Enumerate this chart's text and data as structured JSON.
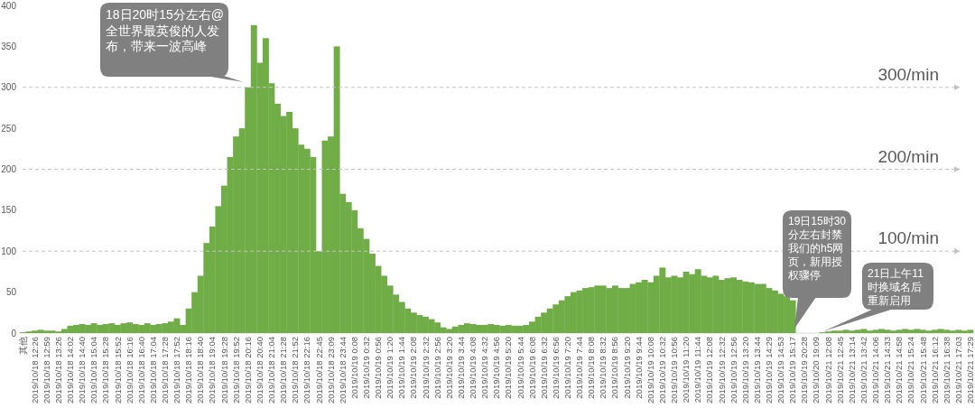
{
  "chart_data": {
    "type": "bar",
    "categories": [
      "其他",
      null,
      "2019/10/18 12:26",
      null,
      "2019/10/18 12:59",
      null,
      "2019/10/18 13:26",
      null,
      "2019/10/18 14:02",
      null,
      "2019/10/18 14:40",
      null,
      "2019/10/18 15:04",
      null,
      "2019/10/18 15:28",
      null,
      "2019/10/18 15:52",
      null,
      "2019/10/18 16:16",
      null,
      "2019/10/18 16:40",
      null,
      "2019/10/18 17:04",
      null,
      "2019/10/18 17:28",
      null,
      "2019/10/18 17:52",
      null,
      "2019/10/18 18:16",
      null,
      "2019/10/18 18:40",
      null,
      "2019/10/18 19:04",
      null,
      "2019/10/18 19:28",
      null,
      "2019/10/18 19:52",
      null,
      "2019/10/18 20:16",
      null,
      "2019/10/18 20:40",
      null,
      "2019/10/18 21:04",
      null,
      "2019/10/18 21:28",
      null,
      "2019/10/18 21:52",
      null,
      "2019/10/18 22:16",
      null,
      "2019/10/18 22:45",
      null,
      "2019/10/18 23:09",
      null,
      "2019/10/18 23:44",
      null,
      "2019/10/19 0:08",
      null,
      "2019/10/19 0:32",
      null,
      "2019/10/19 0:56",
      null,
      "2019/10/19 1:20",
      null,
      "2019/10/19 1:44",
      null,
      "2019/10/19 2:08",
      null,
      "2019/10/19 2:32",
      null,
      "2019/10/19 2:56",
      null,
      "2019/10/19 3:20",
      null,
      "2019/10/19 3:44",
      null,
      "2019/10/19 4:08",
      null,
      "2019/10/19 4:32",
      null,
      "2019/10/19 4:56",
      null,
      "2019/10/19 5:20",
      null,
      "2019/10/19 5:44",
      null,
      "2019/10/19 6:08",
      null,
      "2019/10/19 6:32",
      null,
      "2019/10/19 6:56",
      null,
      "2019/10/19 7:20",
      null,
      "2019/10/19 7:44",
      null,
      "2019/10/19 8:08",
      null,
      "2019/10/19 8:32",
      null,
      "2019/10/19 8:56",
      null,
      "2019/10/19 9:20",
      null,
      "2019/10/19 9:44",
      null,
      "2019/10/19 10:08",
      null,
      "2019/10/19 10:32",
      null,
      "2019/10/19 10:56",
      null,
      "2019/10/19 11:20",
      null,
      "2019/10/19 11:44",
      null,
      "2019/10/19 12:08",
      null,
      "2019/10/19 12:32",
      null,
      "2019/10/19 12:56",
      null,
      "2019/10/19 13:20",
      null,
      "2019/10/19 13:44",
      null,
      "2019/10/19 14:29",
      null,
      "2019/10/19 14:53",
      null,
      "2019/10/19 15:17",
      null,
      "2019/10/19 20:28",
      null,
      "2019/10/20 19:09",
      null,
      "2019/10/21 12:08",
      null,
      "2019/10/21 12:45",
      null,
      "2019/10/21 13:14",
      null,
      "2019/10/21 13:42",
      null,
      "2019/10/21 14:06",
      null,
      "2019/10/21 14:33",
      null,
      "2019/10/21 14:58",
      null,
      "2019/10/21 15:24",
      null,
      "2019/10/21 15:48",
      null,
      "2019/10/21 16:12",
      null,
      "2019/10/21 16:38",
      null,
      "2019/10/21 17:03",
      null,
      "2019/10/21 17:29"
    ],
    "values": [
      1,
      2,
      3,
      4,
      3,
      3,
      2,
      5,
      9,
      10,
      11,
      10,
      12,
      10,
      11,
      12,
      10,
      12,
      13,
      11,
      10,
      12,
      10,
      11,
      12,
      14,
      18,
      10,
      30,
      50,
      70,
      110,
      130,
      155,
      180,
      215,
      240,
      250,
      300,
      376,
      330,
      360,
      305,
      280,
      265,
      270,
      250,
      230,
      225,
      215,
      100,
      235,
      240,
      350,
      170,
      160,
      150,
      128,
      115,
      97,
      82,
      70,
      58,
      47,
      38,
      30,
      25,
      22,
      20,
      17,
      13,
      7,
      5,
      8,
      10,
      12,
      11,
      10,
      10,
      11,
      10,
      9,
      10,
      9,
      9,
      10,
      14,
      20,
      25,
      30,
      35,
      40,
      45,
      50,
      52,
      55,
      56,
      58,
      58,
      55,
      58,
      55,
      55,
      60,
      62,
      65,
      62,
      70,
      80,
      68,
      70,
      68,
      75,
      72,
      78,
      70,
      68,
      70,
      65,
      67,
      68,
      65,
      63,
      62,
      60,
      60,
      55,
      52,
      48,
      45,
      40,
      0,
      0,
      0,
      0,
      1,
      2,
      3,
      3,
      4,
      3,
      4,
      5,
      3,
      4,
      5,
      4,
      3,
      4,
      5,
      4,
      5,
      4,
      3,
      4,
      5,
      4,
      3,
      4,
      3,
      4
    ],
    "color": "#70ad47",
    "ylim": [
      0,
      400
    ],
    "yticks": [
      0,
      50,
      100,
      150,
      200,
      250,
      300,
      350,
      400
    ],
    "ref_lines": [
      {
        "axis": "y",
        "value": 300,
        "label": "300/min",
        "color": "#c4c4c4",
        "line_style": "dashed"
      },
      {
        "axis": "y",
        "value": 200,
        "label": "200/min",
        "color": "#c4c4c4",
        "line_style": "dashed"
      },
      {
        "axis": "y",
        "value": 100,
        "label": "100/min",
        "color": "#c4c4c4",
        "line_style": "dashed"
      }
    ],
    "annotations": [
      "18日20时15分左右@全世界最英俊的人发布，带来一波高峰",
      "19日15时30分左右封禁我们的h5网页，新用授权骤停",
      "21日上午11时换域名后重新启用"
    ]
  }
}
